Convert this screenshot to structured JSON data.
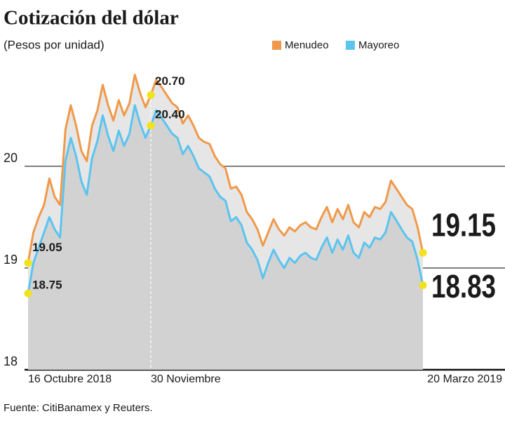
{
  "chart_data": {
    "type": "area",
    "title": "Cotización del dólar",
    "subtitle": "(Pesos por unidad)",
    "source": "Fuente: CitiBanamex y Reuters.",
    "categories": [
      "16 Octubre 2018",
      null,
      null,
      null,
      null,
      null,
      null,
      null,
      null,
      null,
      null,
      null,
      null,
      null,
      null,
      null,
      null,
      null,
      null,
      null,
      null,
      null,
      null,
      "30 Noviembre",
      null,
      null,
      null,
      null,
      null,
      null,
      null,
      null,
      null,
      null,
      null,
      null,
      null,
      null,
      null,
      null,
      null,
      null,
      null,
      null,
      null,
      null,
      null,
      null,
      null,
      null,
      null,
      null,
      null,
      null,
      null,
      null,
      null,
      null,
      null,
      null,
      null,
      null,
      null,
      null,
      null,
      null,
      null,
      null,
      null,
      null,
      null,
      null,
      null,
      null,
      "20 Marzo 2019"
    ],
    "series": [
      {
        "name": "Menudeo",
        "color": "#f0994a",
        "values": [
          19.05,
          19.35,
          19.5,
          19.62,
          19.88,
          19.7,
          19.62,
          20.36,
          20.6,
          20.4,
          20.15,
          20.05,
          20.4,
          20.55,
          20.8,
          20.6,
          20.45,
          20.65,
          20.5,
          20.62,
          20.9,
          20.72,
          20.58,
          20.7,
          20.85,
          20.78,
          20.7,
          20.62,
          20.58,
          20.42,
          20.5,
          20.4,
          20.28,
          20.24,
          20.22,
          20.1,
          20.02,
          19.98,
          19.78,
          19.8,
          19.72,
          19.55,
          19.48,
          19.38,
          19.22,
          19.35,
          19.48,
          19.38,
          19.32,
          19.4,
          19.36,
          19.42,
          19.45,
          19.4,
          19.38,
          19.5,
          19.6,
          19.45,
          19.58,
          19.48,
          19.62,
          19.45,
          19.4,
          19.55,
          19.5,
          19.6,
          19.58,
          19.65,
          19.86,
          19.78,
          19.7,
          19.62,
          19.58,
          19.4,
          19.15
        ],
        "value_labels": [
          "19.05",
          null,
          null,
          null,
          null,
          null,
          null,
          null,
          null,
          null,
          null,
          null,
          null,
          null,
          null,
          null,
          null,
          null,
          null,
          null,
          null,
          null,
          null,
          "20.70",
          null,
          null,
          null,
          null,
          null,
          null,
          null,
          null,
          null,
          null,
          null,
          null,
          null,
          null,
          null,
          null,
          null,
          null,
          null,
          null,
          null,
          null,
          null,
          null,
          null,
          null,
          null,
          null,
          null,
          null,
          null,
          null,
          null,
          null,
          null,
          null,
          null,
          null,
          null,
          null,
          null,
          null,
          null,
          null,
          null,
          null,
          null,
          null,
          null,
          null,
          "19.15"
        ]
      },
      {
        "name": "Mayoreo",
        "color": "#5bc4ef",
        "values": [
          18.75,
          19.05,
          19.2,
          19.35,
          19.5,
          19.38,
          19.3,
          20.05,
          20.28,
          20.1,
          19.85,
          19.72,
          20.08,
          20.25,
          20.5,
          20.3,
          20.15,
          20.35,
          20.2,
          20.32,
          20.6,
          20.42,
          20.28,
          20.4,
          20.55,
          20.48,
          20.4,
          20.32,
          20.28,
          20.12,
          20.2,
          20.1,
          19.98,
          19.94,
          19.9,
          19.78,
          19.7,
          19.66,
          19.46,
          19.5,
          19.42,
          19.25,
          19.18,
          19.08,
          18.9,
          19.05,
          19.18,
          19.08,
          19.0,
          19.1,
          19.05,
          19.12,
          19.15,
          19.1,
          19.08,
          19.2,
          19.3,
          19.15,
          19.28,
          19.18,
          19.32,
          19.15,
          19.1,
          19.25,
          19.2,
          19.3,
          19.28,
          19.35,
          19.55,
          19.47,
          19.38,
          19.3,
          19.26,
          19.08,
          18.83
        ],
        "value_labels": [
          "18.75",
          null,
          null,
          null,
          null,
          null,
          null,
          null,
          null,
          null,
          null,
          null,
          null,
          null,
          null,
          null,
          null,
          null,
          null,
          null,
          null,
          null,
          null,
          "20.40",
          null,
          null,
          null,
          null,
          null,
          null,
          null,
          null,
          null,
          null,
          null,
          null,
          null,
          null,
          null,
          null,
          null,
          null,
          null,
          null,
          null,
          null,
          null,
          null,
          null,
          null,
          null,
          null,
          null,
          null,
          null,
          null,
          null,
          null,
          null,
          null,
          null,
          null,
          null,
          null,
          null,
          null,
          null,
          null,
          null,
          null,
          null,
          null,
          null,
          null,
          "18.83"
        ]
      }
    ],
    "ylim": [
      18,
      21
    ],
    "yticks": [
      18,
      19,
      20
    ],
    "grid": true
  }
}
